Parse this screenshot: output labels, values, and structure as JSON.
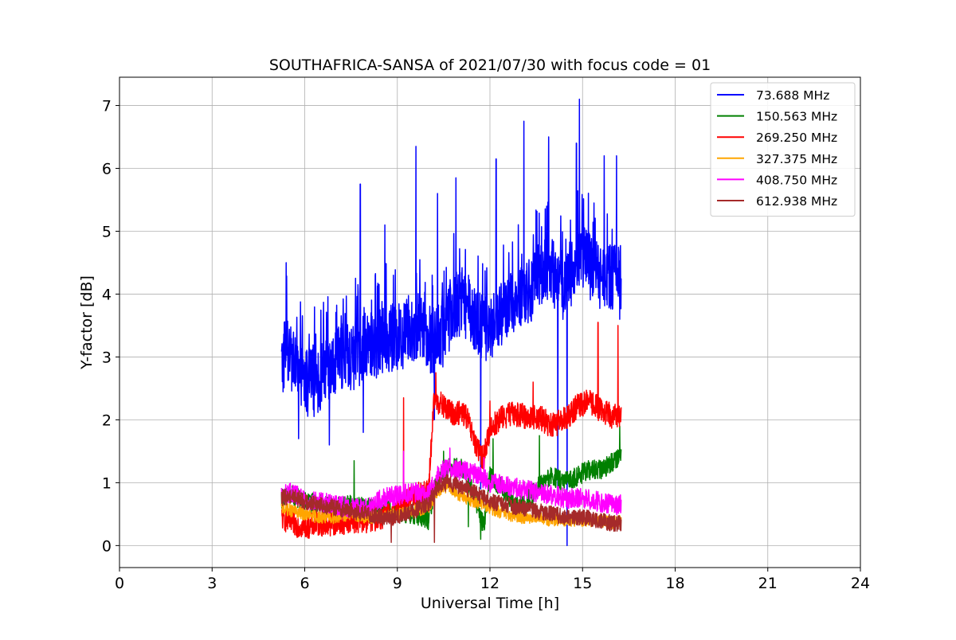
{
  "chart_data": {
    "type": "line",
    "title": "SOUTHAFRICA-SANSA of 2021/07/30 with focus code = 01",
    "xlabel": "Universal Time [h]",
    "ylabel": "Y-factor [dB]",
    "xlim": [
      0,
      24
    ],
    "ylim": [
      -0.35,
      7.45
    ],
    "xticks": [
      0,
      3,
      6,
      9,
      12,
      15,
      18,
      21,
      24
    ],
    "yticks": [
      0,
      1,
      2,
      3,
      4,
      5,
      6,
      7
    ],
    "grid": true,
    "legend_position": "top-right",
    "series": [
      {
        "name": " 73.688 MHz",
        "color": "#0000ff",
        "x": [
          5.25,
          5.4,
          5.6,
          5.8,
          6.0,
          6.3,
          6.6,
          6.9,
          7.2,
          7.5,
          7.8,
          8.1,
          8.4,
          8.7,
          9.0,
          9.3,
          9.6,
          9.9,
          10.2,
          10.5,
          10.8,
          11.1,
          11.4,
          11.7,
          12.0,
          12.3,
          12.6,
          12.9,
          13.2,
          13.5,
          13.8,
          14.1,
          14.4,
          14.7,
          15.0,
          15.3,
          15.6,
          15.9,
          16.25
        ],
        "y": [
          2.85,
          3.1,
          2.9,
          2.7,
          2.6,
          2.6,
          2.7,
          2.8,
          3.0,
          3.0,
          3.1,
          3.2,
          3.2,
          3.3,
          3.3,
          3.4,
          3.5,
          3.4,
          3.2,
          3.4,
          3.8,
          3.9,
          3.7,
          3.5,
          3.4,
          3.6,
          3.8,
          3.9,
          4.0,
          4.2,
          4.4,
          4.3,
          4.1,
          4.4,
          4.6,
          4.4,
          4.2,
          4.3,
          4.3
        ],
        "spikes": [
          [
            5.4,
            4.5
          ],
          [
            5.8,
            1.7
          ],
          [
            6.8,
            1.6
          ],
          [
            7.8,
            5.75
          ],
          [
            7.9,
            1.8
          ],
          [
            8.6,
            5.1
          ],
          [
            9.6,
            6.35
          ],
          [
            10.2,
            2.0
          ],
          [
            10.3,
            5.6
          ],
          [
            10.9,
            5.85
          ],
          [
            11.7,
            0.9
          ],
          [
            12.2,
            6.15
          ],
          [
            13.1,
            6.75
          ],
          [
            13.9,
            6.5
          ],
          [
            14.2,
            0.7
          ],
          [
            14.5,
            0.0
          ],
          [
            14.8,
            6.4
          ],
          [
            14.9,
            7.1
          ],
          [
            15.7,
            6.2
          ],
          [
            16.1,
            6.2
          ],
          [
            16.2,
            3.6
          ]
        ]
      },
      {
        "name": "150.563 MHz",
        "color": "#008000",
        "x": [
          5.25,
          5.6,
          6.0,
          6.5,
          7.0,
          7.5,
          8.0,
          8.5,
          9.0,
          9.5,
          10.0,
          10.2,
          10.5,
          10.8,
          11.2,
          11.6,
          11.8,
          12.0,
          12.4,
          12.8,
          13.2,
          13.6,
          14.0,
          14.4,
          14.8,
          15.2,
          15.6,
          16.0,
          16.25
        ],
        "y": [
          0.75,
          0.8,
          0.7,
          0.65,
          0.6,
          0.65,
          0.6,
          0.55,
          0.55,
          0.5,
          0.4,
          0.9,
          1.2,
          1.25,
          1.2,
          0.6,
          0.3,
          1.1,
          0.9,
          0.6,
          0.7,
          0.95,
          1.1,
          1.0,
          1.1,
          1.2,
          1.2,
          1.35,
          1.45
        ],
        "spikes": [
          [
            7.6,
            1.35
          ],
          [
            10.5,
            1.5
          ],
          [
            11.3,
            0.3
          ],
          [
            11.7,
            0.1
          ],
          [
            12.1,
            1.7
          ],
          [
            13.6,
            1.75
          ],
          [
            16.2,
            1.9
          ]
        ]
      },
      {
        "name": "269.250 MHz",
        "color": "#ff0000",
        "x": [
          5.25,
          5.6,
          6.0,
          6.5,
          7.0,
          7.5,
          8.0,
          8.5,
          9.0,
          9.5,
          10.0,
          10.2,
          10.5,
          10.8,
          11.2,
          11.6,
          11.8,
          12.0,
          12.4,
          12.8,
          13.2,
          13.6,
          14.0,
          14.4,
          14.8,
          15.2,
          15.6,
          16.0,
          16.25
        ],
        "y": [
          0.45,
          0.35,
          0.3,
          0.35,
          0.35,
          0.4,
          0.4,
          0.45,
          0.55,
          0.8,
          0.85,
          2.35,
          2.2,
          2.1,
          2.1,
          1.5,
          1.4,
          1.85,
          2.05,
          2.1,
          2.05,
          2.05,
          1.9,
          2.0,
          2.2,
          2.3,
          2.15,
          2.05,
          2.1
        ],
        "spikes": [
          [
            9.2,
            2.35
          ],
          [
            10.25,
            2.75
          ],
          [
            12.0,
            2.3
          ],
          [
            13.4,
            2.6
          ],
          [
            15.5,
            3.55
          ],
          [
            16.15,
            3.5
          ]
        ]
      },
      {
        "name": "327.375 MHz",
        "color": "#ffa500",
        "x": [
          5.25,
          5.6,
          6.0,
          6.5,
          7.0,
          7.5,
          8.0,
          8.5,
          9.0,
          9.5,
          10.0,
          10.3,
          10.6,
          11.0,
          11.5,
          12.0,
          12.5,
          13.0,
          13.5,
          14.0,
          14.5,
          15.0,
          15.5,
          16.0,
          16.25
        ],
        "y": [
          0.6,
          0.55,
          0.5,
          0.45,
          0.45,
          0.5,
          0.45,
          0.45,
          0.5,
          0.55,
          0.6,
          0.85,
          0.95,
          0.8,
          0.7,
          0.6,
          0.5,
          0.45,
          0.45,
          0.4,
          0.4,
          0.4,
          0.4,
          0.35,
          0.4
        ],
        "spikes": []
      },
      {
        "name": "408.750 MHz",
        "color": "#ff00ff",
        "x": [
          5.25,
          5.6,
          6.0,
          6.5,
          7.0,
          7.5,
          8.0,
          8.5,
          9.0,
          9.5,
          10.0,
          10.3,
          10.6,
          11.0,
          11.5,
          12.0,
          12.5,
          13.0,
          13.5,
          14.0,
          14.5,
          15.0,
          15.5,
          16.0,
          16.25
        ],
        "y": [
          0.8,
          0.85,
          0.7,
          0.7,
          0.65,
          0.6,
          0.6,
          0.75,
          0.8,
          0.85,
          0.8,
          1.1,
          1.25,
          1.2,
          1.15,
          1.0,
          0.95,
          0.9,
          0.85,
          0.8,
          0.75,
          0.75,
          0.7,
          0.65,
          0.65
        ],
        "spikes": [
          [
            9.2,
            1.5
          ],
          [
            10.7,
            1.55
          ],
          [
            11.8,
            1.4
          ]
        ]
      },
      {
        "name": "612.938 MHz",
        "color": "#a52a2a",
        "x": [
          5.25,
          5.6,
          6.0,
          6.5,
          7.0,
          7.5,
          8.0,
          8.5,
          9.0,
          9.5,
          10.0,
          10.3,
          10.6,
          11.0,
          11.5,
          12.0,
          12.5,
          13.0,
          13.5,
          14.0,
          14.5,
          15.0,
          15.5,
          16.0,
          16.25
        ],
        "y": [
          0.75,
          0.8,
          0.7,
          0.65,
          0.6,
          0.55,
          0.5,
          0.45,
          0.45,
          0.55,
          0.65,
          0.95,
          1.0,
          0.95,
          0.85,
          0.7,
          0.65,
          0.6,
          0.55,
          0.5,
          0.45,
          0.45,
          0.4,
          0.35,
          0.35
        ],
        "spikes": [
          [
            8.8,
            0.05
          ],
          [
            10.2,
            0.05
          ]
        ]
      }
    ]
  }
}
